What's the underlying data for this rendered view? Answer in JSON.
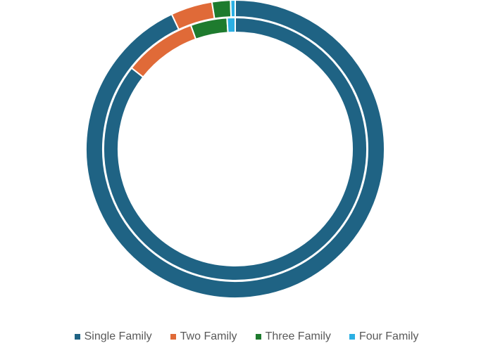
{
  "chart_data": {
    "type": "pie",
    "variant": "donut",
    "title": "",
    "categories": [
      "Single Family",
      "Two Family",
      "Three Family",
      "Four Family"
    ],
    "series": [
      {
        "ring": "outer",
        "values": [
          93.0,
          4.5,
          2.0,
          0.5
        ]
      },
      {
        "ring": "inner",
        "values": [
          86.0,
          9.0,
          4.5,
          1.0
        ]
      }
    ],
    "colors": [
      "#1f6384",
      "#e06a38",
      "#1e7b2e",
      "#2bafe3"
    ],
    "legend_position": "bottom"
  },
  "legend": [
    {
      "label": "Single Family",
      "color": "#1f6384"
    },
    {
      "label": "Two Family",
      "color": "#e06a38"
    },
    {
      "label": "Three Family",
      "color": "#1e7b2e"
    },
    {
      "label": "Four Family",
      "color": "#2bafe3"
    }
  ]
}
